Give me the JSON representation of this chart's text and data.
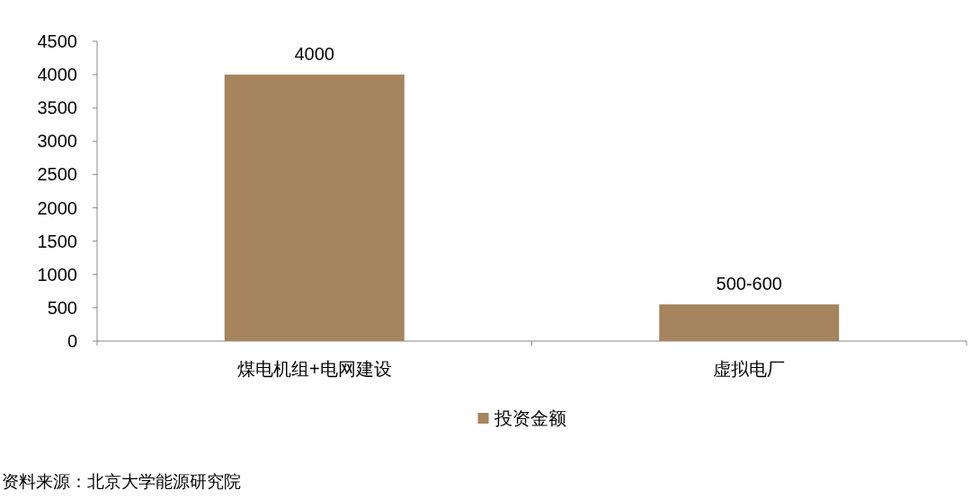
{
  "chart_data": {
    "type": "bar",
    "categories": [
      "煤电机组+电网建设",
      "虚拟电厂"
    ],
    "series": [
      {
        "name": "投资金额",
        "color": "#a5845e",
        "values": [
          4000,
          550
        ]
      }
    ],
    "value_labels": [
      "4000",
      "500-600"
    ],
    "ylim": [
      0,
      4500
    ],
    "yticks": [
      0,
      500,
      1000,
      1500,
      2000,
      2500,
      3000,
      3500,
      4000,
      4500
    ],
    "legend": "bottom",
    "annotations": [
      "资料来源：北京大学能源研究院"
    ]
  }
}
